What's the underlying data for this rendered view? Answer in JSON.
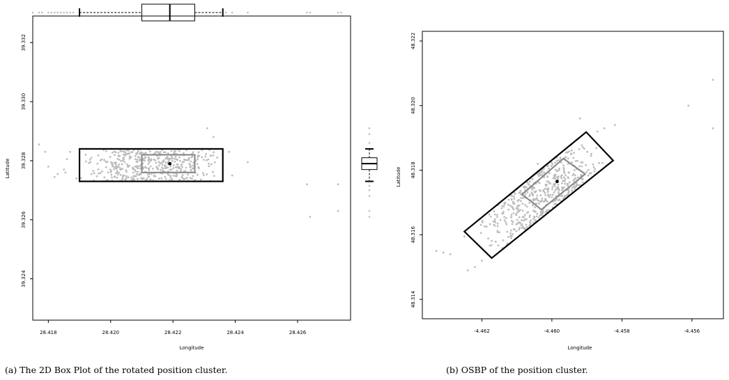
{
  "chart_data": [
    {
      "type": "scatter",
      "caption": "(a) The 2D Box Plot of the rotated position cluster.",
      "xlabel": "Longitude",
      "ylabel": "Latitude",
      "xlim": [
        28.4175,
        28.4277
      ],
      "ylim": [
        39.3226,
        39.3329
      ],
      "xticks": [
        "28.418",
        "28.420",
        "28.422",
        "28.424",
        "28.426"
      ],
      "yticks": [
        "39.324",
        "39.326",
        "39.328",
        "39.330",
        "39.332"
      ],
      "xtick_values": [
        28.418,
        28.42,
        28.422,
        28.424,
        28.426
      ],
      "ytick_values": [
        39.324,
        39.326,
        39.328,
        39.33,
        39.332
      ],
      "outer_box": {
        "x": [
          28.419,
          28.4236
        ],
        "y": [
          39.3273,
          39.3284
        ]
      },
      "inner_box": {
        "x": [
          28.421,
          28.4227
        ],
        "y": [
          39.3276,
          39.3282
        ]
      },
      "center": [
        28.4219,
        39.3279
      ],
      "points_note": "dense cluster",
      "outlier_points": [
        [
          28.4177,
          39.32855
        ],
        [
          28.4179,
          39.3283
        ],
        [
          28.418,
          39.3278
        ],
        [
          28.4182,
          39.32745
        ],
        [
          28.4183,
          39.32755
        ],
        [
          28.4185,
          39.3277
        ],
        [
          28.41855,
          39.3276
        ],
        [
          28.4186,
          39.32805
        ],
        [
          28.4187,
          39.3283
        ],
        [
          28.4189,
          39.3274
        ],
        [
          28.42,
          39.3284
        ],
        [
          28.4192,
          39.3282
        ],
        [
          28.4238,
          39.3283
        ],
        [
          28.4239,
          39.3275
        ],
        [
          28.4244,
          39.32795
        ],
        [
          28.4231,
          39.3291
        ],
        [
          28.4233,
          39.3288
        ],
        [
          28.4263,
          39.3272
        ],
        [
          28.4264,
          39.3261
        ],
        [
          28.4273,
          39.3263
        ],
        [
          28.4273,
          39.3272
        ]
      ],
      "top_boxplot": {
        "whisker_low": 28.419,
        "q1": 28.421,
        "median": 28.4219,
        "q3": 28.4227,
        "whisker_high": 28.4236
      },
      "right_boxplot": {
        "whisker_low": 39.3273,
        "q1": 39.3277,
        "median": 39.3279,
        "q3": 39.3281,
        "whisker_high": 39.3284
      }
    },
    {
      "type": "scatter",
      "caption": "(b) OSBP of the position cluster.",
      "xlabel": "Longitude",
      "ylabel": "Latitude",
      "xlim": [
        -4.4637,
        -4.4551
      ],
      "ylim": [
        48.3134,
        48.3223
      ],
      "xticks": [
        "-4.462",
        "-4.460",
        "-4.458",
        "-4.456"
      ],
      "yticks": [
        "48.314",
        "48.316",
        "48.318",
        "48.320",
        "48.322"
      ],
      "xtick_values": [
        -4.462,
        -4.46,
        -4.458,
        -4.456
      ],
      "ytick_values": [
        48.314,
        48.316,
        48.318,
        48.32,
        48.322
      ],
      "outer_box": [
        [
          -4.4625,
          48.3161
        ],
        [
          -4.45902,
          48.31918
        ],
        [
          -4.45825,
          48.3183
        ],
        [
          -4.46172,
          48.31528
        ]
      ],
      "inner_box": [
        [
          -4.46085,
          48.31725
        ],
        [
          -4.45967,
          48.31836
        ],
        [
          -4.45905,
          48.31788
        ],
        [
          -4.4603,
          48.31678
        ]
      ],
      "center": [
        -4.45985,
        48.31765
      ],
      "points_note": "dense diagonal cluster",
      "outlier_points": [
        [
          -4.4633,
          48.3155
        ],
        [
          -4.4629,
          48.3154
        ],
        [
          -4.4631,
          48.31545
        ],
        [
          -4.4624,
          48.3149
        ],
        [
          -4.4622,
          48.315
        ],
        [
          -4.462,
          48.3152
        ],
        [
          -4.4625,
          48.31595
        ],
        [
          -4.4604,
          48.3182
        ],
        [
          -4.4602,
          48.3179
        ],
        [
          -4.4592,
          48.3196
        ],
        [
          -4.4587,
          48.3192
        ],
        [
          -4.4585,
          48.3193
        ],
        [
          -4.4582,
          48.3194
        ],
        [
          -4.4561,
          48.32
        ],
        [
          -4.4554,
          48.3208
        ],
        [
          -4.4554,
          48.3193
        ]
      ]
    }
  ]
}
